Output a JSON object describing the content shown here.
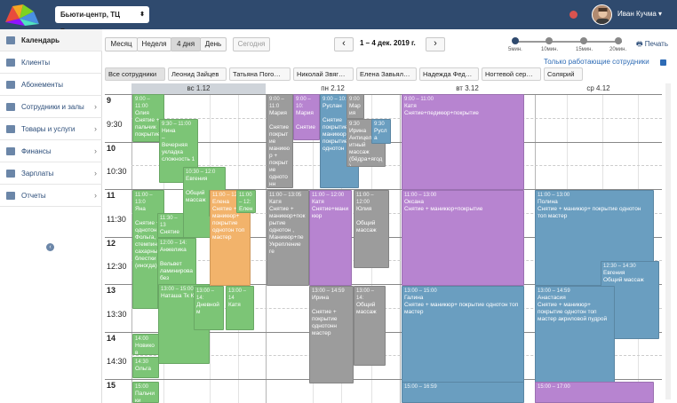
{
  "topbar": {
    "salon_select": "Бьюти-центр, ТЦ Ривьера",
    "user_name": "Иван Кучма ▾",
    "brand_color": "#2f4a6e"
  },
  "sidebar": {
    "items": [
      {
        "label": "Календарь",
        "icon": "calendar-icon",
        "chevron": false,
        "active": true
      },
      {
        "label": "Клиенты",
        "icon": "users-icon",
        "chevron": false
      },
      {
        "label": "Абонементы",
        "icon": "card-icon",
        "chevron": false
      },
      {
        "label": "Сотрудники и залы",
        "icon": "staff-icon",
        "chevron": true
      },
      {
        "label": "Товары и услуги",
        "icon": "cart-icon",
        "chevron": true
      },
      {
        "label": "Финансы",
        "icon": "money-icon",
        "chevron": true
      },
      {
        "label": "Зарплаты",
        "icon": "wallet-icon",
        "chevron": true
      },
      {
        "label": "Отчеты",
        "icon": "chart-icon",
        "chevron": true
      }
    ]
  },
  "toolbar": {
    "view_month": "Месяц",
    "view_week": "Неделя",
    "view_4days": "4 дня",
    "view_day": "День",
    "today": "Сегодня",
    "prev": "‹",
    "next": "›",
    "range": "1 – 4 дек. 2019 г.",
    "print": "Печать",
    "only_working": "Только работающие сотрудники",
    "scale": [
      "5мин.",
      "10мин.",
      "15мин.",
      "20мин."
    ]
  },
  "employees": [
    "Все сотрудники",
    "Леонид Зайцев",
    "Татьяна Пого…",
    "Николай Звяг…",
    "Елена Завьял…",
    "Надежда Фед…",
    "Ногтевой сер…",
    "Солярий"
  ],
  "days": [
    "вс 1.12",
    "пн 2.12",
    "вт 3.12",
    "ср 4.12"
  ],
  "times": [
    {
      "label": "9",
      "big": true
    },
    {
      "label": "9:30",
      "big": false
    },
    {
      "label": "10",
      "big": true
    },
    {
      "label": "10:30",
      "big": false
    },
    {
      "label": "11",
      "big": true
    },
    {
      "label": "11:30",
      "big": false
    },
    {
      "label": "12",
      "big": true
    },
    {
      "label": "12:30",
      "big": false
    },
    {
      "label": "13",
      "big": true
    },
    {
      "label": "13:30",
      "big": false
    },
    {
      "label": "14",
      "big": true
    },
    {
      "label": "14:30",
      "big": false
    },
    {
      "label": "15",
      "big": true
    }
  ],
  "events": [
    {
      "t": "9:00 – 11:00",
      "txt": "Олия\nСнятие + пальчик покрытие",
      "c": "green"
    },
    {
      "t": "9:30 – 11:00",
      "txt": "Нина\n–\nВечерняя укладка сложность 1",
      "c": "green"
    },
    {
      "t": "10:30 – 12:0",
      "txt": "Евгения\n\nОбщий массаж",
      "c": "green"
    },
    {
      "t": "11:00 – 13:0",
      "txt": "Яна\n\nСнятие + однотон Фольга, стемпин сахарный блестки (иногда)",
      "c": "green"
    },
    {
      "t": "11:00",
      "txt": "Елена",
      "c": "green"
    },
    {
      "t": "11:30 – 13",
      "txt": "Снятие +",
      "c": "green"
    },
    {
      "t": "12:00 – 14:",
      "txt": "Анжелика\n\nВельвет ламинирова без",
      "c": "green"
    },
    {
      "t": "13:00 – 15:00",
      "txt": "Наташа Тк Катя",
      "c": "green"
    },
    {
      "t": "13:00 – 14:",
      "txt": "Дневной м",
      "c": "green"
    },
    {
      "t": "13:00 – 14",
      "txt": "Катя",
      "c": "green"
    },
    {
      "t": "14:00",
      "txt": "Новиков Снятие",
      "c": "green"
    },
    {
      "t": "14:30",
      "txt": "Ольга",
      "c": "green"
    },
    {
      "t": "15:00",
      "txt": "Пальчики",
      "c": "green"
    },
    {
      "t": "11:00 – 12:",
      "txt": "Елена\nСнятие + маникюр+ покрытие однотон топ мастер",
      "c": "orange"
    },
    {
      "t": "11:00 – 12:",
      "txt": "Елена",
      "c": "green"
    },
    {
      "t": "9:00 – 11:0",
      "txt": "Мария\n\nСнятие покрытие маникюр + покрытие однотонн",
      "c": "gray"
    },
    {
      "t": "9:00 – 10:",
      "txt": "Мария\n\nСнятие",
      "c": "purple"
    },
    {
      "t": "9:00 – 10:",
      "txt": "Руслан\n\nСнятие покрытие маникюр + покрытие однотон",
      "c": "blue"
    },
    {
      "t": "9:00",
      "txt": "Мария",
      "c": "gray"
    },
    {
      "t": "9:30",
      "txt": "Ирина\nАнтицеллюлитный массаж (бёдра+ягод)",
      "c": "gray"
    },
    {
      "t": "9:30",
      "txt": "Русла",
      "c": "blue"
    },
    {
      "t": "11:00 – 13:05",
      "txt": "Катя\nСнятие + маникюр+покрытие однотон , Маникюр+пе Укрепление ге",
      "c": "gray"
    },
    {
      "t": "11:00 – 12:00",
      "txt": "Катя\nСнятие+маникюр",
      "c": "purple"
    },
    {
      "t": "11:00 – 12:00",
      "txt": "Юлия\n\nОбщий массаж",
      "c": "gray"
    },
    {
      "t": "13:00 – 14:59",
      "txt": "Ирина\n\nСнятие + покрытие однотонн мастер",
      "c": "gray"
    },
    {
      "t": "13:00 – 14:",
      "txt": "Общий массаж",
      "c": "gray"
    },
    {
      "t": "9:00 – 11:00",
      "txt": "Катя\nСнятие+педикюр+покрытие",
      "c": "purple"
    },
    {
      "t": "11:00 – 13:00",
      "txt": "Оксана\nСнятие + маникюр+покрытие",
      "c": "purple"
    },
    {
      "t": "13:00 – 15:00",
      "txt": "Галина\nСнятие + маникюр+ покрытие однотон топ мастер",
      "c": "blue"
    },
    {
      "t": "15:00 – 16:59",
      "txt": "",
      "c": "blue"
    },
    {
      "t": "11:00 – 13:00",
      "txt": "Полина\nСнятие + маникюр+ покрытие однотон топ мастер",
      "c": "blue"
    },
    {
      "t": "12:30 – 14:30",
      "txt": "Евгения\nОбщий массаж",
      "c": "blue"
    },
    {
      "t": "13:00 – 14:59",
      "txt": "Анастасия\nСнятие + маникюр+ покрытие однотон топ мастер акриловой пудрой",
      "c": "blue"
    },
    {
      "t": "15:00 – 17:00",
      "txt": "",
      "c": "purple"
    }
  ]
}
